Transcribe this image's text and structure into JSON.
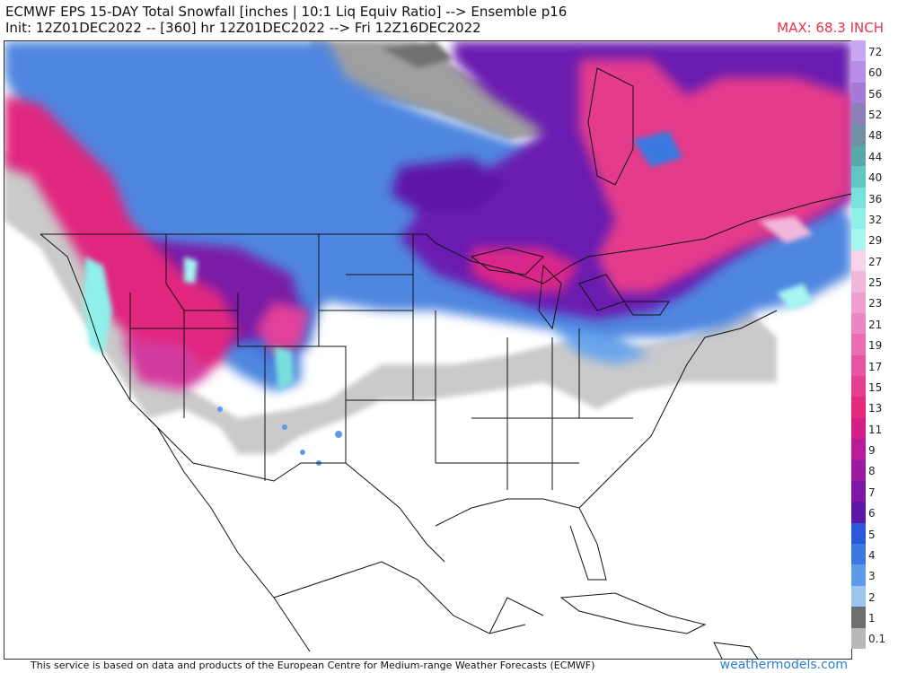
{
  "header": {
    "title_line1": "ECMWF EPS 15-DAY Total Snowfall [inches | 10:1 Liq Equiv Ratio] --> Ensemble p16",
    "title_line2": "Init: 12Z01DEC2022 -- [360] hr 12Z01DEC2022 --> Fri 12Z16DEC2022",
    "max_label": "MAX: 68.3 INCH",
    "max_color": "#e8334a"
  },
  "legend": {
    "levels": [
      {
        "label": "72",
        "color": "#c9a6f2"
      },
      {
        "label": "60",
        "color": "#b98ee8"
      },
      {
        "label": "56",
        "color": "#a57bd6"
      },
      {
        "label": "52",
        "color": "#8b7fb8"
      },
      {
        "label": "48",
        "color": "#6f8fa5"
      },
      {
        "label": "44",
        "color": "#5aa7a8"
      },
      {
        "label": "40",
        "color": "#62c6c4"
      },
      {
        "label": "36",
        "color": "#79e0dc"
      },
      {
        "label": "32",
        "color": "#8ff0ea"
      },
      {
        "label": "29",
        "color": "#a6f6f1"
      },
      {
        "label": "27",
        "color": "#f6d4ea"
      },
      {
        "label": "25",
        "color": "#f2b8dc"
      },
      {
        "label": "23",
        "color": "#ee9fd0"
      },
      {
        "label": "21",
        "color": "#ea86c4"
      },
      {
        "label": "19",
        "color": "#e86db6"
      },
      {
        "label": "17",
        "color": "#e754a5"
      },
      {
        "label": "15",
        "color": "#e63f92"
      },
      {
        "label": "13",
        "color": "#e52a7d"
      },
      {
        "label": "11",
        "color": "#d41f88"
      },
      {
        "label": "9",
        "color": "#b81c96"
      },
      {
        "label": "8",
        "color": "#9a1aa0"
      },
      {
        "label": "7",
        "color": "#7d17a4"
      },
      {
        "label": "6",
        "color": "#5d17a8"
      },
      {
        "label": "5",
        "color": "#2b58d6"
      },
      {
        "label": "4",
        "color": "#3b79e0"
      },
      {
        "label": "3",
        "color": "#5f9ae8"
      },
      {
        "label": "2",
        "color": "#9cc6f0"
      },
      {
        "label": "1",
        "color": "#6e6e6e"
      },
      {
        "label": "0.1",
        "color": "#b8b8b8"
      }
    ]
  },
  "footer": {
    "credit": "This service is based on data and products of the European Centre for Medium-range Weather Forecasts (ECMWF)",
    "site": "weathermodels.com",
    "site_color": "#2a7fd4"
  }
}
